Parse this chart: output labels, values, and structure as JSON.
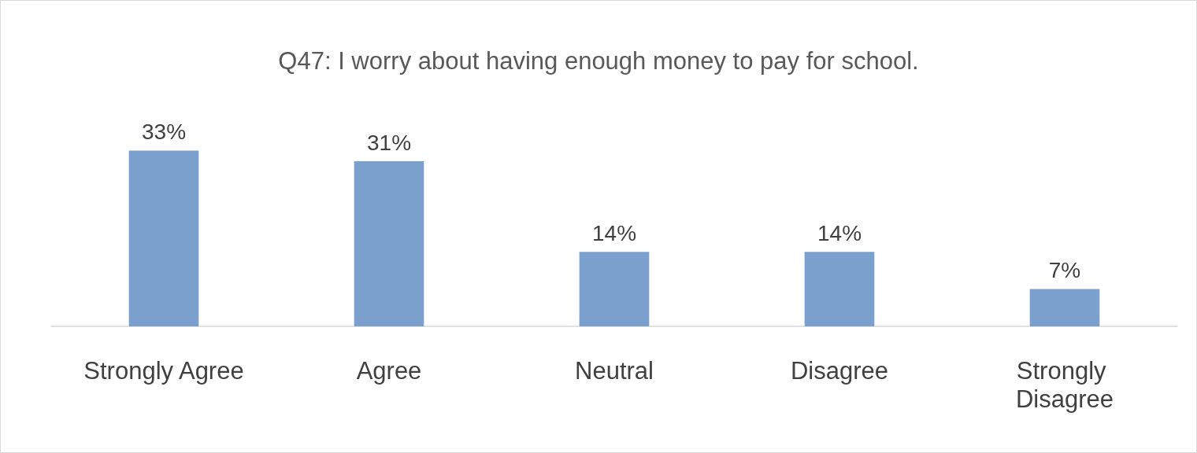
{
  "chart_data": {
    "type": "bar",
    "title": "Q47: I worry about having enough money to pay for school.",
    "categories": [
      "Strongly Agree",
      "Agree",
      "Neutral",
      "Disagree",
      "Strongly Disagree"
    ],
    "values": [
      33,
      31,
      14,
      14,
      7
    ],
    "value_labels": [
      "33%",
      "31%",
      "14%",
      "14%",
      "7%"
    ],
    "color": "#7ba0cd"
  }
}
